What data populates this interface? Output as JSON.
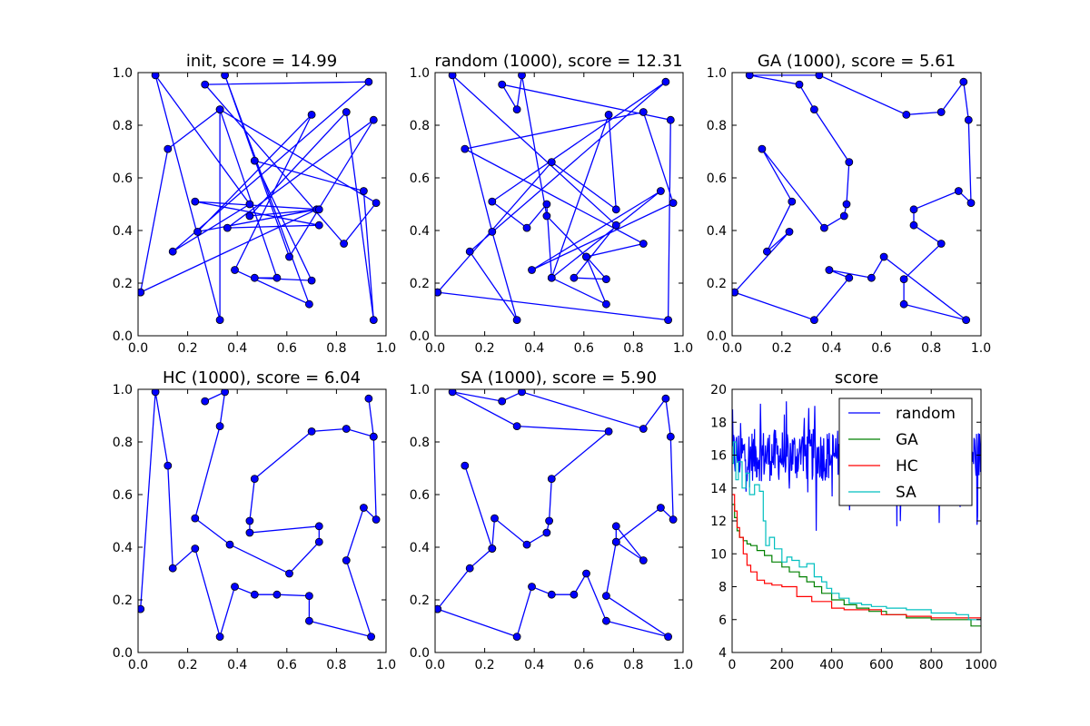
{
  "chart_data": [
    {
      "type": "line",
      "title": "init, score = 14.99",
      "xlim": [
        0,
        1
      ],
      "ylim": [
        0,
        1
      ],
      "xticks": [
        "0.0",
        "0.2",
        "0.4",
        "0.6",
        "0.8",
        "1.0"
      ],
      "yticks": [
        "0.0",
        "0.2",
        "0.4",
        "0.6",
        "0.8",
        "1.0"
      ],
      "color": "#0000ff",
      "points": [
        [
          0.01,
          0.165
        ],
        [
          0.72,
          0.48
        ],
        [
          0.24,
          0.395
        ],
        [
          0.7,
          0.84
        ],
        [
          0.39,
          0.25
        ],
        [
          0.69,
          0.12
        ],
        [
          0.35,
          0.99
        ],
        [
          0.61,
          0.3
        ],
        [
          0.95,
          0.82
        ],
        [
          0.36,
          0.41
        ],
        [
          0.73,
          0.42
        ],
        [
          0.23,
          0.51
        ],
        [
          0.73,
          0.48
        ],
        [
          0.45,
          0.455
        ],
        [
          0.84,
          0.85
        ],
        [
          0.95,
          0.06
        ],
        [
          0.91,
          0.55
        ],
        [
          0.47,
          0.665
        ],
        [
          0.7,
          0.21
        ],
        [
          0.47,
          0.22
        ],
        [
          0.56,
          0.22
        ],
        [
          0.33,
          0.86
        ],
        [
          0.96,
          0.505
        ],
        [
          0.83,
          0.35
        ],
        [
          0.27,
          0.955
        ],
        [
          0.93,
          0.965
        ],
        [
          0.14,
          0.32
        ],
        [
          0.45,
          0.5
        ],
        [
          0.07,
          0.99
        ],
        [
          0.33,
          0.06
        ],
        [
          0.33,
          0.86
        ],
        [
          0.12,
          0.71
        ],
        [
          0.01,
          0.165
        ]
      ]
    },
    {
      "type": "line",
      "title": "random (1000), score = 12.31",
      "xlim": [
        0,
        1
      ],
      "ylim": [
        0,
        1
      ],
      "xticks": [
        "0.0",
        "0.2",
        "0.4",
        "0.6",
        "0.8",
        "1.0"
      ],
      "yticks": [
        "0.0",
        "0.2",
        "0.4",
        "0.6",
        "0.8",
        "1.0"
      ],
      "color": "#0000ff",
      "points": [
        [
          0.01,
          0.165
        ],
        [
          0.47,
          0.66
        ],
        [
          0.73,
          0.48
        ],
        [
          0.7,
          0.84
        ],
        [
          0.47,
          0.22
        ],
        [
          0.69,
          0.12
        ],
        [
          0.61,
          0.3
        ],
        [
          0.84,
          0.35
        ],
        [
          0.12,
          0.71
        ],
        [
          0.84,
          0.85
        ],
        [
          0.96,
          0.505
        ],
        [
          0.39,
          0.25
        ],
        [
          0.91,
          0.55
        ],
        [
          0.47,
          0.22
        ],
        [
          0.45,
          0.5
        ],
        [
          0.37,
          0.41
        ],
        [
          0.23,
          0.51
        ],
        [
          0.93,
          0.965
        ],
        [
          0.14,
          0.32
        ],
        [
          0.33,
          0.06
        ],
        [
          0.23,
          0.395
        ],
        [
          0.07,
          0.99
        ],
        [
          0.73,
          0.42
        ],
        [
          0.56,
          0.22
        ],
        [
          0.69,
          0.215
        ],
        [
          0.61,
          0.3
        ],
        [
          0.45,
          0.455
        ],
        [
          0.35,
          0.99
        ],
        [
          0.33,
          0.86
        ],
        [
          0.27,
          0.955
        ],
        [
          0.95,
          0.82
        ],
        [
          0.94,
          0.06
        ],
        [
          0.01,
          0.165
        ]
      ]
    },
    {
      "type": "line",
      "title": "GA (1000), score = 5.61",
      "xlim": [
        0,
        1
      ],
      "ylim": [
        0,
        1
      ],
      "xticks": [
        "0.0",
        "0.2",
        "0.4",
        "0.6",
        "0.8",
        "1.0"
      ],
      "yticks": [
        "0.0",
        "0.2",
        "0.4",
        "0.6",
        "0.8",
        "1.0"
      ],
      "color": "#0000ff",
      "points": [
        [
          0.01,
          0.165
        ],
        [
          0.23,
          0.395
        ],
        [
          0.14,
          0.32
        ],
        [
          0.24,
          0.51
        ],
        [
          0.12,
          0.71
        ],
        [
          0.37,
          0.41
        ],
        [
          0.45,
          0.455
        ],
        [
          0.46,
          0.5
        ],
        [
          0.47,
          0.66
        ],
        [
          0.33,
          0.86
        ],
        [
          0.27,
          0.955
        ],
        [
          0.07,
          0.99
        ],
        [
          0.35,
          0.99
        ],
        [
          0.7,
          0.84
        ],
        [
          0.84,
          0.85
        ],
        [
          0.93,
          0.965
        ],
        [
          0.95,
          0.82
        ],
        [
          0.96,
          0.505
        ],
        [
          0.91,
          0.55
        ],
        [
          0.73,
          0.48
        ],
        [
          0.73,
          0.42
        ],
        [
          0.84,
          0.35
        ],
        [
          0.69,
          0.215
        ],
        [
          0.69,
          0.12
        ],
        [
          0.94,
          0.06
        ],
        [
          0.61,
          0.3
        ],
        [
          0.56,
          0.22
        ],
        [
          0.39,
          0.25
        ],
        [
          0.47,
          0.22
        ],
        [
          0.33,
          0.06
        ],
        [
          0.01,
          0.165
        ]
      ]
    },
    {
      "type": "line",
      "title": "HC (1000), score = 6.04",
      "xlim": [
        0,
        1
      ],
      "ylim": [
        0,
        1
      ],
      "xticks": [
        "0.0",
        "0.2",
        "0.4",
        "0.6",
        "0.8",
        "1.0"
      ],
      "yticks": [
        "0.0",
        "0.2",
        "0.4",
        "0.6",
        "0.8",
        "1.0"
      ],
      "color": "#0000ff",
      "points": [
        [
          0.01,
          0.165
        ],
        [
          0.07,
          0.99
        ],
        [
          0.12,
          0.71
        ],
        [
          0.14,
          0.32
        ],
        [
          0.23,
          0.395
        ],
        [
          0.33,
          0.06
        ],
        [
          0.39,
          0.25
        ],
        [
          0.47,
          0.22
        ],
        [
          0.56,
          0.22
        ],
        [
          0.69,
          0.215
        ],
        [
          0.69,
          0.12
        ],
        [
          0.94,
          0.06
        ],
        [
          0.84,
          0.35
        ],
        [
          0.91,
          0.55
        ],
        [
          0.96,
          0.505
        ],
        [
          0.95,
          0.82
        ],
        [
          0.93,
          0.965
        ],
        [
          0.95,
          0.82
        ],
        [
          0.84,
          0.85
        ],
        [
          0.7,
          0.84
        ],
        [
          0.47,
          0.66
        ],
        [
          0.45,
          0.5
        ],
        [
          0.45,
          0.455
        ],
        [
          0.73,
          0.48
        ],
        [
          0.73,
          0.42
        ],
        [
          0.61,
          0.3
        ],
        [
          0.37,
          0.41
        ],
        [
          0.23,
          0.51
        ],
        [
          0.33,
          0.86
        ],
        [
          0.35,
          0.99
        ],
        [
          0.27,
          0.955
        ]
      ]
    },
    {
      "type": "line",
      "title": "SA (1000), score = 5.90",
      "xlim": [
        0,
        1
      ],
      "ylim": [
        0,
        1
      ],
      "xticks": [
        "0.0",
        "0.2",
        "0.4",
        "0.6",
        "0.8",
        "1.0"
      ],
      "yticks": [
        "0.0",
        "0.2",
        "0.4",
        "0.6",
        "0.8",
        "1.0"
      ],
      "color": "#0000ff",
      "points": [
        [
          0.01,
          0.165
        ],
        [
          0.33,
          0.06
        ],
        [
          0.39,
          0.25
        ],
        [
          0.47,
          0.22
        ],
        [
          0.56,
          0.22
        ],
        [
          0.61,
          0.3
        ],
        [
          0.69,
          0.12
        ],
        [
          0.94,
          0.06
        ],
        [
          0.69,
          0.215
        ],
        [
          0.73,
          0.42
        ],
        [
          0.84,
          0.35
        ],
        [
          0.73,
          0.48
        ],
        [
          0.73,
          0.42
        ],
        [
          0.91,
          0.55
        ],
        [
          0.96,
          0.505
        ],
        [
          0.95,
          0.82
        ],
        [
          0.93,
          0.965
        ],
        [
          0.84,
          0.85
        ],
        [
          0.35,
          0.99
        ],
        [
          0.27,
          0.955
        ],
        [
          0.07,
          0.99
        ],
        [
          0.33,
          0.86
        ],
        [
          0.7,
          0.84
        ],
        [
          0.47,
          0.66
        ],
        [
          0.46,
          0.5
        ],
        [
          0.45,
          0.455
        ],
        [
          0.37,
          0.41
        ],
        [
          0.24,
          0.51
        ],
        [
          0.23,
          0.395
        ],
        [
          0.12,
          0.71
        ],
        [
          0.23,
          0.395
        ],
        [
          0.14,
          0.32
        ],
        [
          0.01,
          0.165
        ]
      ]
    },
    {
      "type": "line",
      "title": "score",
      "xlim": [
        0,
        1000
      ],
      "ylim": [
        4,
        20
      ],
      "xticks": [
        "0",
        "200",
        "400",
        "600",
        "800",
        "1000"
      ],
      "yticks": [
        "4",
        "6",
        "8",
        "10",
        "12",
        "14",
        "16",
        "18",
        "20"
      ],
      "legend_position": "top-right",
      "series": [
        {
          "name": "random",
          "color": "#0000ff",
          "noisy": true,
          "mean": 16.0,
          "spread": 1.6,
          "step": 2,
          "x": [
            0,
            1000
          ],
          "y": [
            16,
            16
          ]
        },
        {
          "name": "GA",
          "color": "#008000",
          "x": [
            0,
            10,
            20,
            30,
            45,
            60,
            75,
            100,
            130,
            160,
            200,
            230,
            270,
            300,
            330,
            360,
            400,
            450,
            500,
            550,
            620,
            700,
            800,
            900,
            960,
            1000
          ],
          "y": [
            13.0,
            12.2,
            11.4,
            11.0,
            10.8,
            10.6,
            10.5,
            10.2,
            9.9,
            9.5,
            9.2,
            8.9,
            8.6,
            8.3,
            8.0,
            7.6,
            7.2,
            6.9,
            6.7,
            6.5,
            6.3,
            6.1,
            6.0,
            6.0,
            5.61,
            5.61
          ]
        },
        {
          "name": "HC",
          "color": "#ff0000",
          "x": [
            0,
            10,
            20,
            30,
            45,
            60,
            75,
            100,
            130,
            160,
            200,
            260,
            320,
            400,
            450,
            600,
            700,
            800,
            900,
            1000
          ],
          "y": [
            13.6,
            12.6,
            11.6,
            11.0,
            10.0,
            9.3,
            8.9,
            8.4,
            8.2,
            8.1,
            8.0,
            7.4,
            7.1,
            6.7,
            6.6,
            6.3,
            6.2,
            6.1,
            6.1,
            6.04
          ]
        },
        {
          "name": "SA",
          "color": "#00bfbf",
          "x": [
            0,
            5,
            15,
            25,
            40,
            55,
            70,
            90,
            110,
            125,
            135,
            150,
            170,
            200,
            220,
            240,
            270,
            300,
            330,
            360,
            380,
            400,
            430,
            470,
            520,
            560,
            620,
            700,
            800,
            900,
            950,
            1000
          ],
          "y": [
            15.5,
            16.8,
            14.5,
            15.6,
            14.0,
            14.9,
            13.6,
            14.2,
            13.8,
            12.0,
            10.5,
            11.0,
            10.3,
            9.5,
            9.8,
            9.6,
            9.2,
            9.4,
            8.6,
            8.3,
            7.9,
            7.6,
            7.3,
            7.0,
            6.9,
            6.8,
            6.7,
            6.6,
            6.4,
            6.3,
            6.0,
            5.9
          ]
        }
      ]
    }
  ]
}
